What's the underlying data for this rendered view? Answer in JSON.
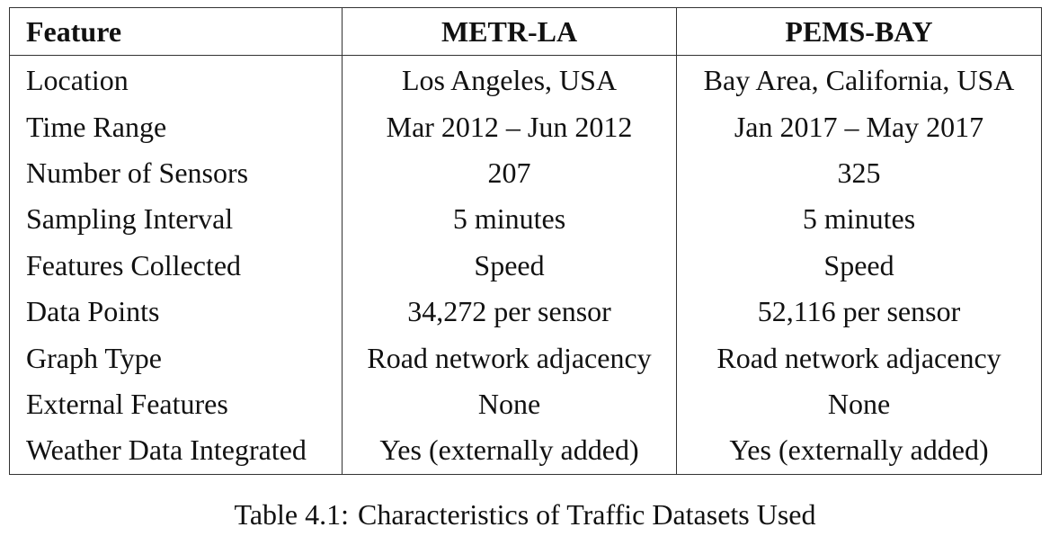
{
  "table": {
    "headers": [
      "Feature",
      "METR-LA",
      "PEMS-BAY"
    ],
    "rows": [
      [
        "Location",
        "Los Angeles, USA",
        "Bay Area, California, USA"
      ],
      [
        "Time Range",
        "Mar 2012 – Jun 2012",
        "Jan 2017 – May 2017"
      ],
      [
        "Number of Sensors",
        "207",
        "325"
      ],
      [
        "Sampling Interval",
        "5 minutes",
        "5 minutes"
      ],
      [
        "Features Collected",
        "Speed",
        "Speed"
      ],
      [
        "Data Points",
        "34,272 per sensor",
        "52,116 per sensor"
      ],
      [
        "Graph Type",
        "Road network adjacency",
        "Road network adjacency"
      ],
      [
        "External Features",
        "None",
        "None"
      ],
      [
        "Weather Data Integrated",
        "Yes (externally added)",
        "Yes (externally added)"
      ]
    ]
  },
  "caption": {
    "number": "Table 4.1:",
    "text": "Characteristics of Traffic Datasets Used"
  }
}
